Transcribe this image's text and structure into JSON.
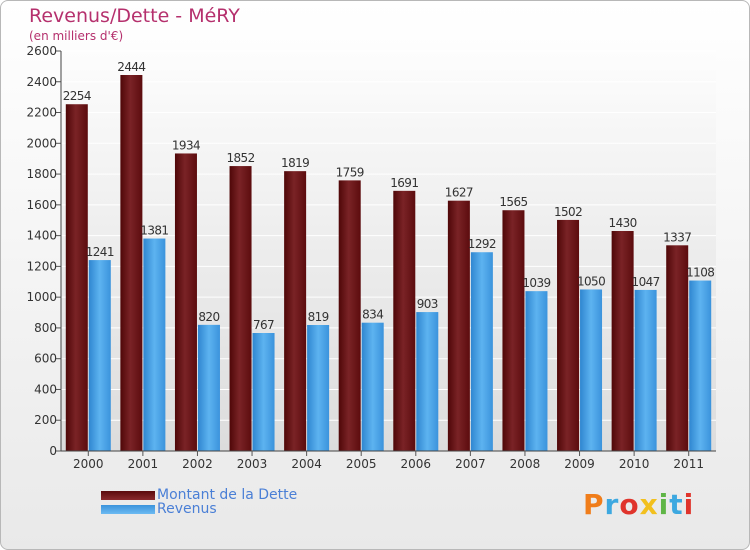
{
  "title": "Revenus/Dette - MéRY",
  "subtitle": "(en milliers d'€)",
  "logo_text": "Proxiti",
  "colors": {
    "dette": "#6e1214",
    "revenus": "#4aa3e6",
    "title": "#b5306d",
    "legend_text": "#4a7fd6"
  },
  "chart_data": {
    "type": "bar",
    "title": "Revenus/Dette - MéRY",
    "subtitle": "(en milliers d'€)",
    "xlabel": "",
    "ylabel": "",
    "ylim": [
      0,
      2600
    ],
    "yticks": [
      0,
      200,
      400,
      600,
      800,
      1000,
      1200,
      1400,
      1600,
      1800,
      2000,
      2200,
      2400,
      2600
    ],
    "categories": [
      "2000",
      "2001",
      "2002",
      "2003",
      "2004",
      "2005",
      "2006",
      "2007",
      "2008",
      "2009",
      "2010",
      "2011"
    ],
    "series": [
      {
        "name": "Montant de la Dette",
        "values": [
          2254,
          2444,
          1934,
          1852,
          1819,
          1759,
          1691,
          1627,
          1565,
          1502,
          1430,
          1337
        ]
      },
      {
        "name": "Revenus",
        "values": [
          1241,
          1381,
          820,
          767,
          819,
          834,
          903,
          1292,
          1039,
          1050,
          1047,
          1108
        ]
      }
    ],
    "grid": true,
    "legend_position": "bottom-left"
  },
  "legend": {
    "items": [
      "Montant de la Dette",
      "Revenus"
    ]
  }
}
